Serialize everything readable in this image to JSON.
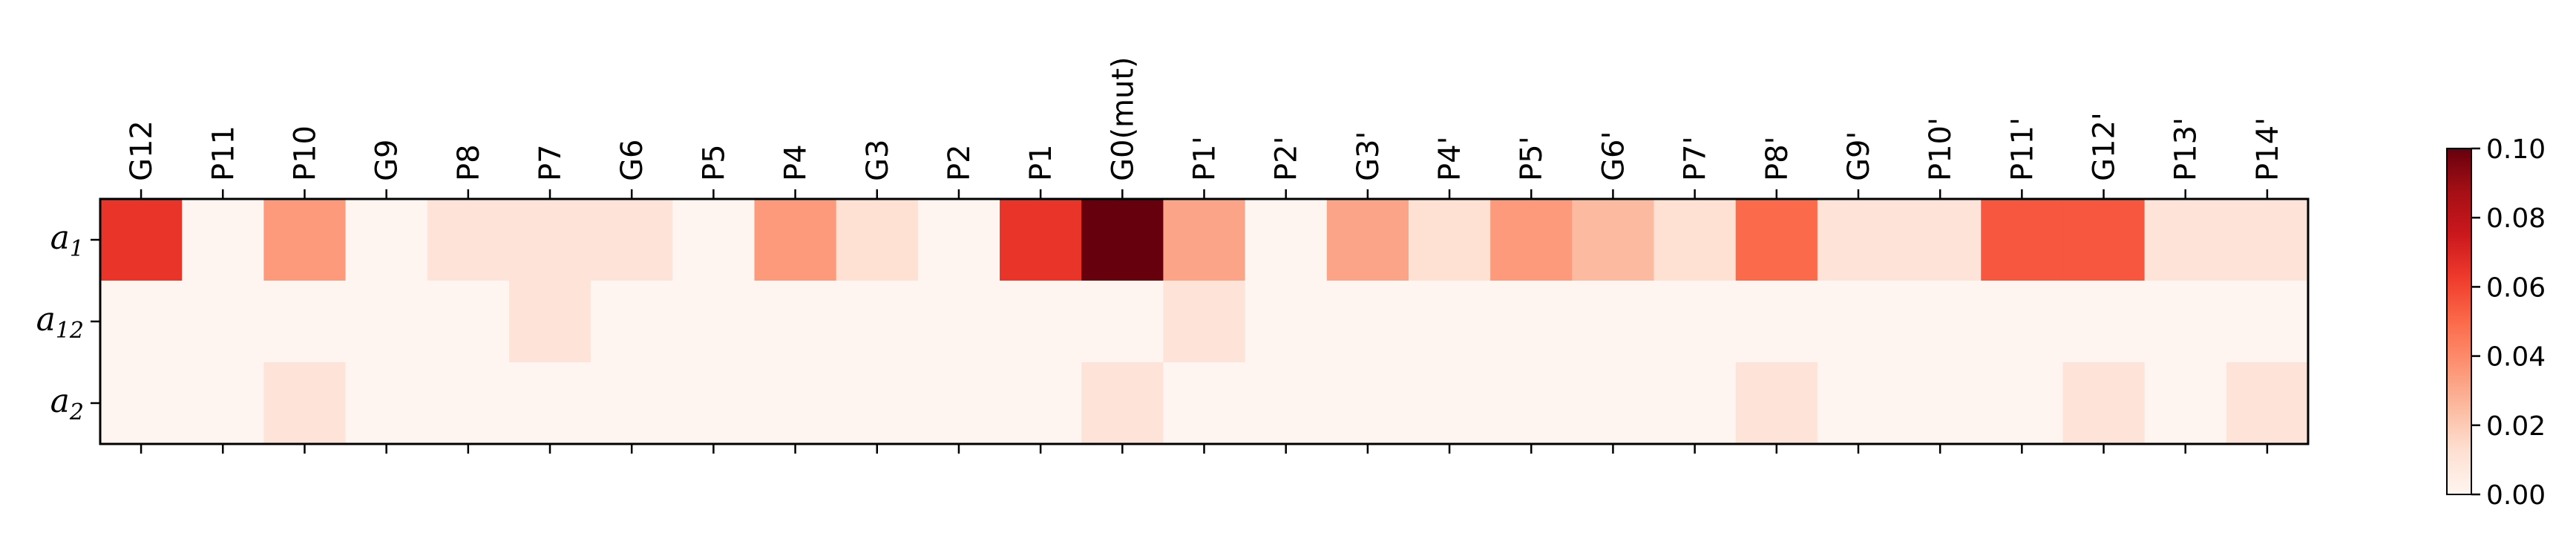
{
  "chart_data": {
    "type": "heatmap",
    "title": "",
    "xlabel": "",
    "ylabel": "",
    "columns": [
      "G12",
      "P11",
      "P10",
      "G9",
      "P8",
      "P7",
      "G6",
      "P5",
      "P4",
      "G3",
      "P2",
      "P1",
      "G0(mut)",
      "P1'",
      "P2'",
      "G3'",
      "P4'",
      "P5'",
      "G6'",
      "P7'",
      "P8'",
      "G9'",
      "P10'",
      "P11'",
      "G12'",
      "P13'",
      "P14'"
    ],
    "rows": [
      {
        "name": "a",
        "sub": "1"
      },
      {
        "name": "a",
        "sub": "12"
      },
      {
        "name": "a",
        "sub": "2"
      }
    ],
    "values": [
      [
        0.065,
        0.0,
        0.035,
        0.0,
        0.01,
        0.01,
        0.01,
        0.0,
        0.035,
        0.012,
        0.0,
        0.065,
        0.1,
        0.032,
        0.0,
        0.032,
        0.012,
        0.035,
        0.025,
        0.012,
        0.05,
        0.01,
        0.01,
        0.055,
        0.055,
        0.01,
        0.01
      ],
      [
        0.0,
        0.0,
        0.0,
        0.0,
        0.0,
        0.01,
        0.0,
        0.0,
        0.0,
        0.0,
        0.0,
        0.0,
        0.0,
        0.01,
        0.0,
        0.0,
        0.0,
        0.0,
        0.0,
        0.0,
        0.0,
        0.0,
        0.0,
        0.0,
        0.0,
        0.0,
        0.0
      ],
      [
        0.0,
        0.0,
        0.01,
        0.0,
        0.0,
        0.0,
        0.0,
        0.0,
        0.0,
        0.0,
        0.0,
        0.0,
        0.01,
        0.0,
        0.0,
        0.0,
        0.0,
        0.0,
        0.0,
        0.0,
        0.01,
        0.0,
        0.0,
        0.0,
        0.01,
        0.0,
        0.01
      ]
    ],
    "colormap": "Reds",
    "vmin": 0.0,
    "vmax": 0.1,
    "colorbar_ticks": [
      "0.00",
      "0.02",
      "0.04",
      "0.06",
      "0.08",
      "0.10"
    ],
    "x_tick_position": "top"
  }
}
